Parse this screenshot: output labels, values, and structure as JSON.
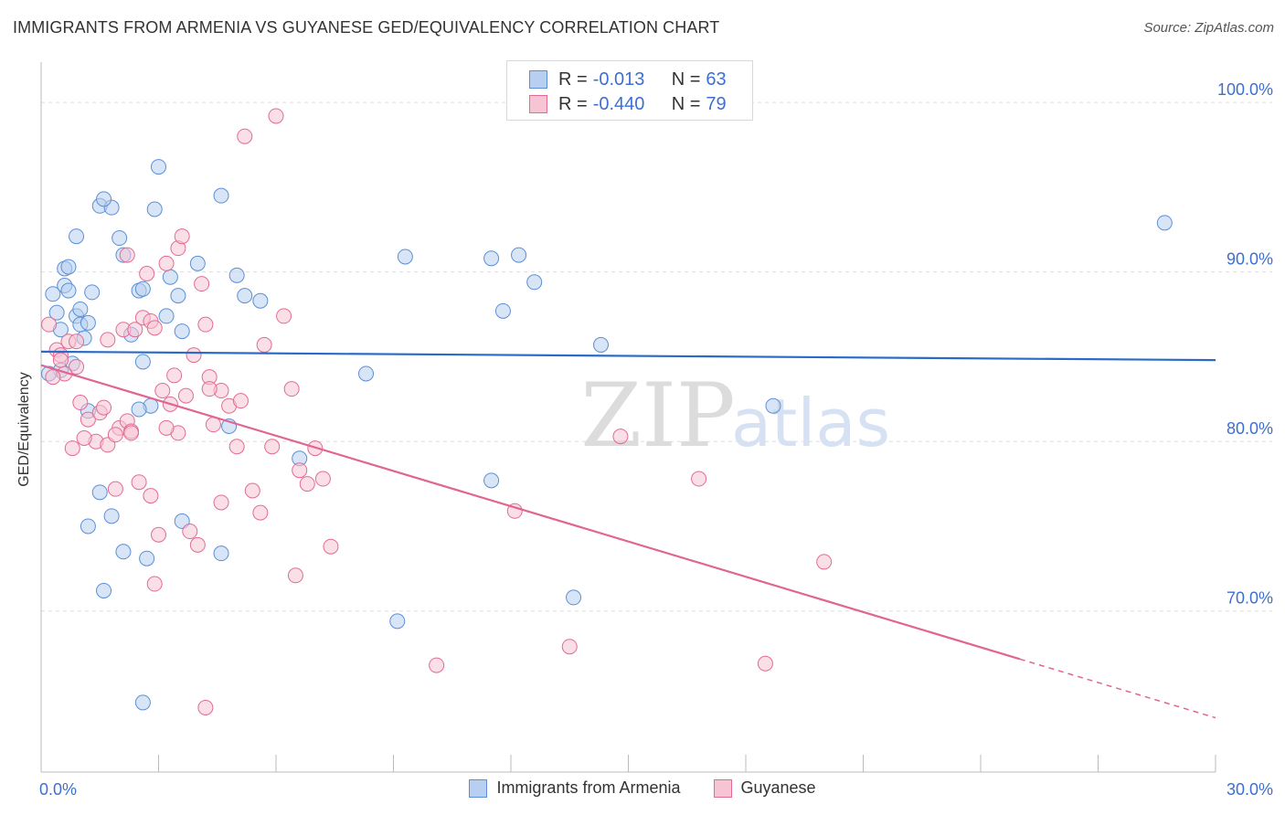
{
  "title": "IMMIGRANTS FROM ARMENIA VS GUYANESE GED/EQUIVALENCY CORRELATION CHART",
  "source": "Source: ZipAtlas.com",
  "watermark": {
    "zip": "ZIP",
    "atlas": "atlas"
  },
  "legend": {
    "rows": [
      {
        "r_label": "R =",
        "r_value": "-0.013",
        "n_label": "N =",
        "n_value": "63"
      },
      {
        "r_label": "R =",
        "r_value": "-0.440",
        "n_label": "N =",
        "n_value": "79"
      }
    ]
  },
  "chart_data": {
    "type": "scatter",
    "ylabel": "GED/Equivalency",
    "xlim": [
      0,
      30
    ],
    "ylim": [
      60.5,
      102
    ],
    "x_tick_labels": [
      "0.0%",
      "30.0%"
    ],
    "y_ticks": [
      70,
      80,
      90,
      100
    ],
    "y_tick_labels": [
      "70.0%",
      "80.0%",
      "90.0%",
      "100.0%"
    ],
    "grid": true,
    "legend_position": "top-center",
    "series": [
      {
        "name": "Immigrants from Armenia",
        "color": "#5b8fd6",
        "fill": "#b8cff1",
        "trend": {
          "x": [
            0,
            30
          ],
          "y": [
            85.3,
            84.8
          ],
          "dashed_from": null
        },
        "points": [
          [
            0.3,
            88.7
          ],
          [
            0.4,
            87.6
          ],
          [
            0.6,
            89.2
          ],
          [
            0.7,
            88.9
          ],
          [
            0.5,
            86.6
          ],
          [
            0.9,
            92.1
          ],
          [
            0.6,
            90.2
          ],
          [
            0.7,
            90.3
          ],
          [
            0.9,
            87.4
          ],
          [
            1.0,
            87.8
          ],
          [
            1.1,
            86.1
          ],
          [
            1.3,
            88.8
          ],
          [
            1.0,
            86.9
          ],
          [
            1.2,
            87.0
          ],
          [
            1.5,
            93.9
          ],
          [
            1.8,
            93.8
          ],
          [
            1.6,
            94.3
          ],
          [
            2.0,
            92.0
          ],
          [
            2.1,
            91.0
          ],
          [
            2.5,
            88.9
          ],
          [
            2.6,
            89.0
          ],
          [
            2.3,
            86.3
          ],
          [
            2.6,
            84.7
          ],
          [
            2.8,
            82.1
          ],
          [
            2.5,
            81.9
          ],
          [
            3.0,
            96.2
          ],
          [
            2.9,
            93.7
          ],
          [
            3.3,
            89.7
          ],
          [
            3.5,
            88.6
          ],
          [
            3.2,
            87.4
          ],
          [
            3.6,
            86.5
          ],
          [
            4.0,
            90.5
          ],
          [
            4.6,
            94.5
          ],
          [
            5.0,
            89.8
          ],
          [
            5.2,
            88.6
          ],
          [
            5.6,
            88.3
          ],
          [
            4.8,
            80.9
          ],
          [
            0.8,
            84.6
          ],
          [
            0.5,
            84.2
          ],
          [
            1.2,
            81.8
          ],
          [
            1.5,
            77.0
          ],
          [
            1.8,
            75.6
          ],
          [
            2.1,
            73.5
          ],
          [
            2.7,
            73.1
          ],
          [
            1.6,
            71.2
          ],
          [
            3.6,
            75.3
          ],
          [
            4.6,
            73.4
          ],
          [
            1.2,
            75.0
          ],
          [
            6.6,
            79.0
          ],
          [
            8.3,
            84.0
          ],
          [
            9.3,
            90.9
          ],
          [
            11.5,
            90.8
          ],
          [
            11.8,
            87.7
          ],
          [
            12.2,
            91.0
          ],
          [
            12.6,
            89.4
          ],
          [
            14.3,
            85.7
          ],
          [
            11.5,
            77.7
          ],
          [
            13.6,
            70.8
          ],
          [
            9.1,
            69.4
          ],
          [
            18.7,
            82.1
          ],
          [
            28.7,
            92.9
          ],
          [
            2.6,
            64.6
          ],
          [
            0.2,
            84.0
          ]
        ]
      },
      {
        "name": "Guyanese",
        "color": "#e26b95",
        "fill": "#f7c4d4",
        "trend": {
          "x": [
            0,
            30
          ],
          "y": [
            84.5,
            63.7
          ],
          "dashed_from": 25
        },
        "points": [
          [
            0.2,
            86.9
          ],
          [
            0.4,
            85.4
          ],
          [
            0.5,
            85.1
          ],
          [
            0.7,
            85.9
          ],
          [
            0.9,
            84.4
          ],
          [
            0.6,
            84.0
          ],
          [
            0.3,
            83.8
          ],
          [
            1.0,
            82.3
          ],
          [
            1.2,
            81.3
          ],
          [
            0.8,
            79.6
          ],
          [
            1.4,
            80.0
          ],
          [
            1.7,
            79.8
          ],
          [
            1.5,
            81.7
          ],
          [
            1.9,
            77.2
          ],
          [
            2.0,
            80.8
          ],
          [
            2.2,
            81.2
          ],
          [
            2.3,
            80.6
          ],
          [
            2.1,
            86.6
          ],
          [
            2.4,
            86.6
          ],
          [
            2.6,
            87.3
          ],
          [
            2.8,
            87.1
          ],
          [
            2.9,
            86.7
          ],
          [
            2.7,
            89.9
          ],
          [
            3.2,
            90.5
          ],
          [
            3.5,
            91.4
          ],
          [
            3.6,
            92.1
          ],
          [
            3.4,
            83.9
          ],
          [
            3.7,
            82.7
          ],
          [
            3.9,
            85.1
          ],
          [
            4.1,
            89.3
          ],
          [
            4.2,
            86.9
          ],
          [
            4.3,
            83.8
          ],
          [
            4.6,
            83.0
          ],
          [
            4.4,
            81.0
          ],
          [
            4.8,
            82.1
          ],
          [
            5.1,
            82.4
          ],
          [
            5.0,
            79.7
          ],
          [
            5.4,
            77.1
          ],
          [
            5.7,
            85.7
          ],
          [
            5.9,
            79.7
          ],
          [
            6.2,
            87.4
          ],
          [
            6.4,
            83.1
          ],
          [
            6.6,
            78.3
          ],
          [
            6.8,
            77.5
          ],
          [
            2.5,
            77.6
          ],
          [
            2.8,
            76.8
          ],
          [
            3.0,
            74.5
          ],
          [
            3.8,
            74.7
          ],
          [
            4.0,
            73.9
          ],
          [
            4.6,
            76.4
          ],
          [
            2.9,
            71.6
          ],
          [
            5.6,
            75.8
          ],
          [
            6.5,
            72.1
          ],
          [
            7.0,
            79.6
          ],
          [
            7.2,
            77.8
          ],
          [
            7.4,
            73.8
          ],
          [
            2.2,
            91.0
          ],
          [
            5.2,
            98.0
          ],
          [
            6.0,
            99.2
          ],
          [
            12.1,
            75.9
          ],
          [
            13.5,
            67.9
          ],
          [
            10.1,
            66.8
          ],
          [
            14.8,
            80.3
          ],
          [
            16.8,
            77.8
          ],
          [
            20.0,
            72.9
          ],
          [
            18.5,
            66.9
          ],
          [
            4.2,
            64.3
          ],
          [
            0.5,
            84.8
          ],
          [
            0.9,
            85.9
          ],
          [
            1.6,
            82.0
          ],
          [
            1.1,
            80.2
          ],
          [
            1.9,
            80.4
          ],
          [
            2.3,
            80.5
          ],
          [
            3.3,
            82.2
          ],
          [
            3.5,
            80.5
          ],
          [
            3.2,
            80.8
          ],
          [
            1.7,
            86.0
          ],
          [
            3.1,
            83.0
          ],
          [
            4.3,
            83.1
          ]
        ]
      }
    ]
  }
}
